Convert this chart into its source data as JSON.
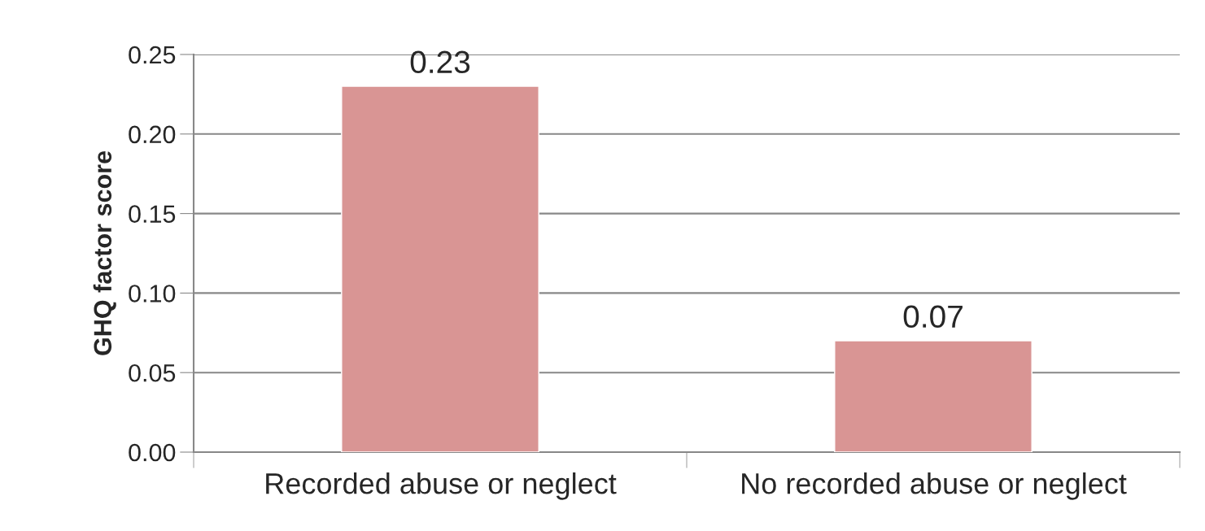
{
  "chart_data": {
    "type": "bar",
    "ylabel": "GHQ factor score",
    "categories": [
      "Recorded abuse or neglect",
      "No recorded abuse or neglect"
    ],
    "values": [
      0.23,
      0.07
    ],
    "color": "#d99594",
    "ylim": [
      0,
      0.25
    ],
    "yticks": [
      {
        "value": 0,
        "label": "0.00"
      },
      {
        "value": 0.05,
        "label": "0.05"
      },
      {
        "value": 0.1,
        "label": "0.10"
      },
      {
        "value": 0.15,
        "label": "0.15"
      },
      {
        "value": 0.2,
        "label": "0.20"
      },
      {
        "value": 0.25,
        "label": "0.25"
      }
    ],
    "grid": "y",
    "data_labels": true
  }
}
